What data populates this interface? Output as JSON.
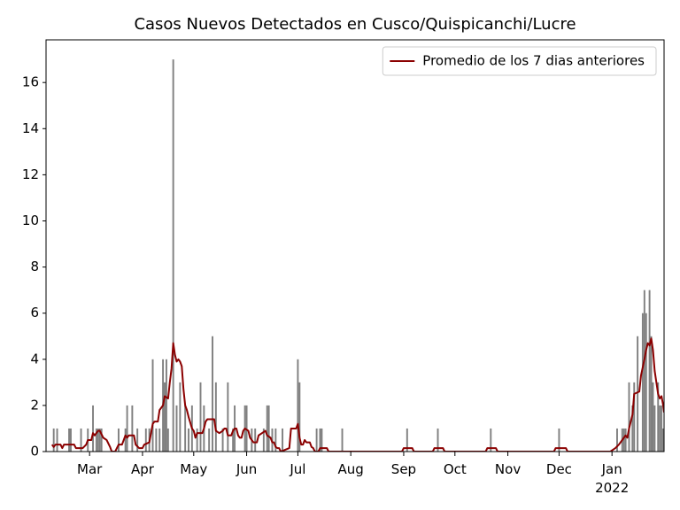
{
  "chart_data": {
    "type": "bar",
    "title": "Casos Nuevos Detectados en Cusco/Quispicanchi/Lucre",
    "xlim": [
      2.5,
      364.5
    ],
    "xticks": [
      {
        "value": 28,
        "label": "Mar"
      },
      {
        "value": 59,
        "label": "Apr"
      },
      {
        "value": 89,
        "label": "May"
      },
      {
        "value": 120,
        "label": "Jun"
      },
      {
        "value": 150,
        "label": "Jul"
      },
      {
        "value": 181,
        "label": "Aug"
      },
      {
        "value": 212,
        "label": "Sep"
      },
      {
        "value": 242,
        "label": "Oct"
      },
      {
        "value": 273,
        "label": "Nov"
      },
      {
        "value": 303,
        "label": "Dec"
      },
      {
        "value": 334,
        "label": "Jan\n2022"
      }
    ],
    "ylim": [
      0,
      17.85
    ],
    "yticks": [
      0,
      2,
      4,
      6,
      8,
      10,
      12,
      14,
      16
    ],
    "legend": "upper right",
    "series": [
      {
        "type": "bar",
        "color": "#808080",
        "x": [
          7,
          9,
          16,
          17,
          23,
          27,
          30,
          32,
          33,
          34,
          35,
          45,
          49,
          50,
          53,
          56,
          61,
          63,
          65,
          67,
          69,
          71,
          72,
          73,
          74,
          77,
          79,
          81,
          84,
          86,
          88,
          91,
          93,
          95,
          98,
          100,
          102,
          106,
          109,
          112,
          113,
          119,
          120,
          123,
          125,
          130,
          132,
          133,
          135,
          137,
          141,
          150,
          151,
          161,
          163,
          164,
          176,
          214,
          232,
          263,
          303,
          337,
          340,
          341,
          342,
          344,
          346,
          347,
          349,
          352,
          353,
          354,
          356,
          357,
          358,
          359,
          361,
          362,
          363,
          364
        ],
        "values": [
          1,
          1,
          1,
          1,
          1,
          1,
          2,
          1,
          1,
          1,
          1,
          1,
          1,
          2,
          2,
          1,
          1,
          1,
          4,
          1,
          1,
          4,
          3,
          4,
          1,
          17,
          2,
          3,
          2,
          1,
          2,
          1,
          3,
          2,
          1,
          5,
          3,
          1,
          3,
          1,
          2,
          2,
          2,
          1,
          1,
          1,
          2,
          2,
          1,
          1,
          1,
          4,
          3,
          1,
          1,
          1,
          1,
          1,
          1,
          1,
          1,
          1,
          1,
          1,
          1,
          3,
          2,
          3,
          5,
          6,
          7,
          6,
          7,
          5,
          3,
          2,
          3,
          2,
          2,
          1
        ]
      },
      {
        "type": "line",
        "name": "Promedio de los 7 dias anteriores",
        "color": "#8b0000",
        "x": [
          6,
          7,
          8,
          11,
          12,
          13,
          19,
          20,
          24,
          26,
          27,
          29,
          30,
          31,
          33,
          34,
          36,
          38,
          40,
          41,
          43,
          44,
          45,
          47,
          49,
          50,
          51,
          54,
          55,
          57,
          59,
          60,
          63,
          64,
          65,
          66,
          68,
          69,
          71,
          72,
          74,
          75,
          76,
          77,
          78,
          79,
          80,
          81,
          82,
          83,
          84,
          85,
          86,
          88,
          89,
          90,
          91,
          94,
          95,
          96,
          97,
          101,
          102,
          104,
          106,
          107,
          108,
          109,
          111,
          112,
          113,
          114,
          115,
          116,
          117,
          118,
          119,
          121,
          122,
          124,
          126,
          127,
          129,
          131,
          132,
          134,
          135,
          136,
          137,
          138,
          139,
          140,
          145,
          146,
          149,
          150,
          151,
          152,
          153,
          154,
          155,
          157,
          158,
          159,
          160,
          162,
          163,
          167,
          168,
          211,
          212,
          217,
          218,
          229,
          230,
          235,
          236,
          260,
          261,
          266,
          267,
          300,
          301,
          307,
          308,
          333,
          336,
          338,
          340,
          342,
          343,
          344,
          346,
          347,
          350,
          351,
          353,
          354,
          355,
          356,
          357,
          358,
          359,
          360,
          361,
          362,
          363,
          364,
          364.5
        ],
        "values": [
          0.3,
          0.2,
          0.3,
          0.3,
          0.15,
          0.3,
          0.3,
          0.15,
          0.15,
          0.3,
          0.5,
          0.5,
          0.8,
          0.7,
          0.9,
          0.9,
          0.6,
          0.5,
          0.2,
          0,
          0,
          0.15,
          0.3,
          0.3,
          0.7,
          0.6,
          0.7,
          0.7,
          0.3,
          0.15,
          0.15,
          0.3,
          0.4,
          0.8,
          1.2,
          1.3,
          1.3,
          1.8,
          2,
          2.4,
          2.3,
          3,
          3.6,
          4.7,
          4.2,
          3.9,
          4,
          3.9,
          3.7,
          2.7,
          2.0,
          1.8,
          1.5,
          1.0,
          0.9,
          0.6,
          0.8,
          0.8,
          1.0,
          1.3,
          1.4,
          1.4,
          0.9,
          0.8,
          0.9,
          1.0,
          1.0,
          0.7,
          0.7,
          0.9,
          1.0,
          1.0,
          0.7,
          0.6,
          0.6,
          0.9,
          1.0,
          0.9,
          0.6,
          0.4,
          0.4,
          0.7,
          0.8,
          0.9,
          0.7,
          0.6,
          0.4,
          0.4,
          0.2,
          0.15,
          0.15,
          0,
          0.15,
          1,
          1,
          1.2,
          0.6,
          0.3,
          0.3,
          0.5,
          0.4,
          0.4,
          0.2,
          0.15,
          0,
          0,
          0.15,
          0.15,
          0,
          0,
          0.15,
          0.15,
          0,
          0,
          0.15,
          0.15,
          0,
          0,
          0.15,
          0.15,
          0,
          0,
          0.15,
          0.15,
          0,
          0,
          0.15,
          0.3,
          0.5,
          0.7,
          0.6,
          1.0,
          1.6,
          2.5,
          2.6,
          3.3,
          4.0,
          4.4,
          4.7,
          4.6,
          4.9,
          4.4,
          3.5,
          3.0,
          2.5,
          2.3,
          2.4,
          2.0,
          1.7
        ]
      }
    ]
  }
}
